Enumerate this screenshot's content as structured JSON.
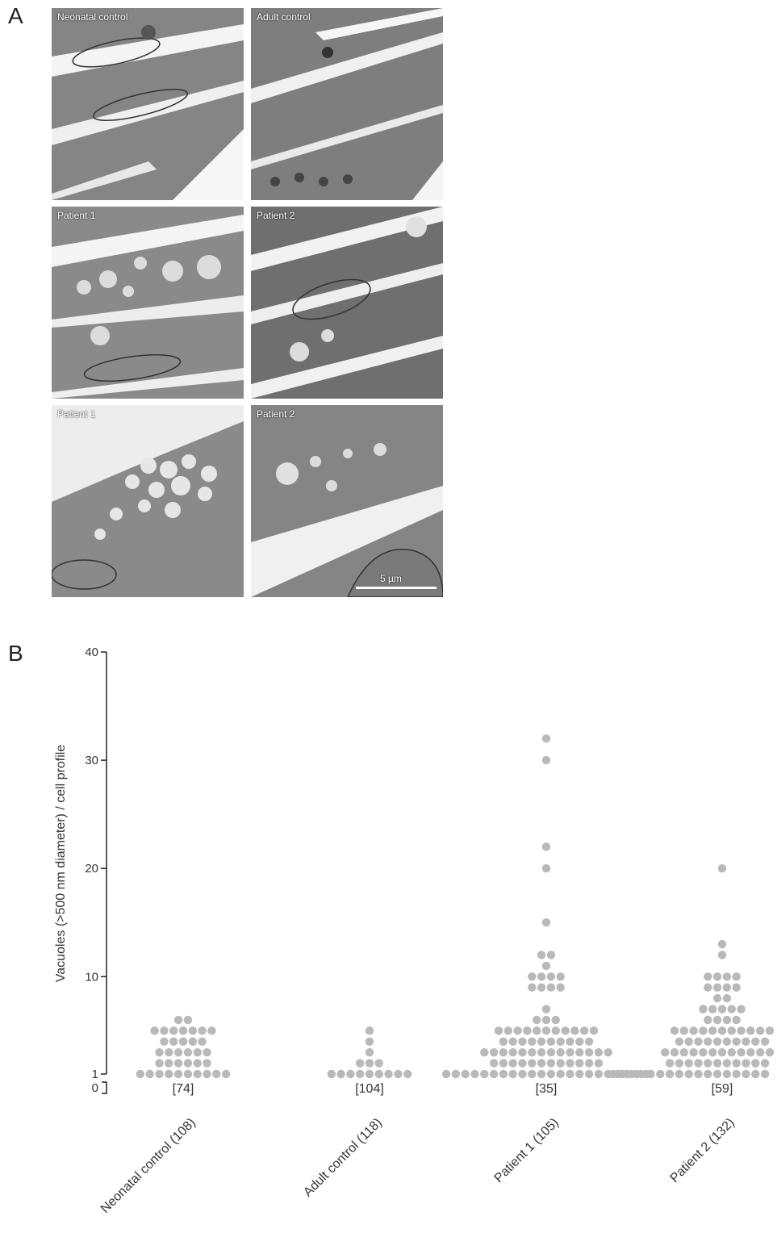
{
  "panel_a": {
    "letter": "A",
    "images": [
      {
        "label": "Neonatal control"
      },
      {
        "label": "Adult control"
      },
      {
        "label": "Patient 1"
      },
      {
        "label": "Patient 2"
      },
      {
        "label": "Patient 1"
      },
      {
        "label": "Patient 2"
      }
    ],
    "scale_bar": "5 µm"
  },
  "panel_b": {
    "letter": "B"
  },
  "chart_data": {
    "type": "scatter",
    "ylabel": "Vacuoles (>500 nm diameter) / cell profile",
    "yticks": [
      "0",
      "1",
      "10",
      "20",
      "30",
      "40"
    ],
    "ylim": [
      0,
      40
    ],
    "categories": [
      "Neonatal control (108)",
      "Adult control (118)",
      "Patient 1 (105)",
      "Patient 2 (132)"
    ],
    "zero_counts": [
      "[74]",
      "[104]",
      "[35]",
      "[59]"
    ],
    "series": [
      {
        "category": "Neonatal control (108)",
        "points": {
          "1": 10,
          "2": 6,
          "3": 6,
          "4": 5,
          "5": 7,
          "6": 2
        }
      },
      {
        "category": "Adult control (118)",
        "points": {
          "1": 9,
          "2": 3,
          "3": 1,
          "4": 1,
          "5": 1
        }
      },
      {
        "category": "Patient 1 (105)",
        "points": {
          "1": 22,
          "2": 12,
          "3": 14,
          "4": 10,
          "5": 11,
          "6": 3,
          "7": 1,
          "9": 4,
          "10": 4,
          "11": 1,
          "12": 2,
          "15": 1,
          "20": 1,
          "22": 1,
          "30": 1,
          "32": 1
        }
      },
      {
        "category": "Patient 2 (132)",
        "points": {
          "1": 24,
          "2": 12,
          "3": 13,
          "4": 10,
          "5": 11,
          "6": 4,
          "7": 5,
          "8": 2,
          "9": 4,
          "10": 4,
          "12": 1,
          "13": 1,
          "20": 1
        }
      }
    ]
  }
}
